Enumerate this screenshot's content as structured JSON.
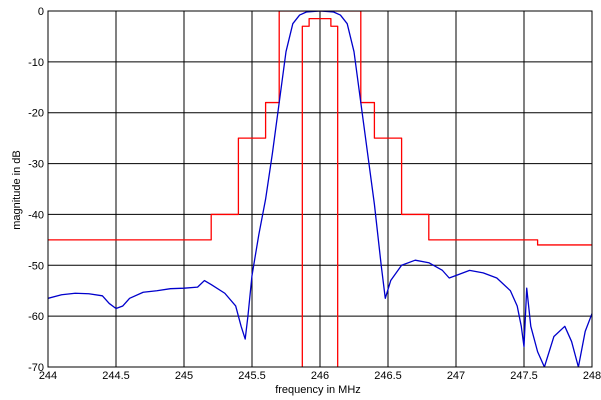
{
  "chart_data": {
    "type": "line",
    "xlabel": "frequency in MHz",
    "ylabel": "magnitude in dB",
    "xlim": [
      244,
      248
    ],
    "ylim": [
      -70,
      0
    ],
    "x_ticks": [
      "244",
      "244.5",
      "245",
      "245.5",
      "246",
      "246.5",
      "247",
      "247.5",
      "248"
    ],
    "y_ticks": [
      "0",
      "-10",
      "-20",
      "-30",
      "-40",
      "-50",
      "-60",
      "-70"
    ],
    "grid": true,
    "colors": {
      "mask": "#ff0000",
      "spectrum": "#0000cc"
    },
    "series": [
      {
        "key": "mask_upper",
        "color_key": "mask",
        "style": "step",
        "points": [
          [
            244,
            -45
          ],
          [
            245.2,
            -45
          ],
          [
            245.2,
            -40
          ],
          [
            245.4,
            -40
          ],
          [
            245.4,
            -25
          ],
          [
            245.6,
            -25
          ],
          [
            245.6,
            -18
          ],
          [
            245.7,
            -18
          ],
          [
            245.7,
            0
          ],
          [
            246.3,
            0
          ],
          [
            246.3,
            -18
          ],
          [
            246.4,
            -18
          ],
          [
            246.4,
            -25
          ],
          [
            246.6,
            -25
          ],
          [
            246.6,
            -40
          ],
          [
            246.8,
            -40
          ],
          [
            246.8,
            -45
          ],
          [
            247.6,
            -45
          ],
          [
            247.6,
            -46
          ],
          [
            248,
            -46
          ]
        ]
      },
      {
        "key": "mask_lower",
        "color_key": "mask",
        "style": "step",
        "points": [
          [
            245.87,
            -70
          ],
          [
            245.87,
            -3
          ],
          [
            245.92,
            -3
          ],
          [
            245.92,
            -1.5
          ],
          [
            246.08,
            -1.5
          ],
          [
            246.08,
            -3
          ],
          [
            246.13,
            -3
          ],
          [
            246.13,
            -70
          ]
        ]
      },
      {
        "key": "spectrum",
        "color_key": "spectrum",
        "style": "line",
        "points": [
          [
            244,
            -56.5
          ],
          [
            244.1,
            -55.8
          ],
          [
            244.2,
            -55.5
          ],
          [
            244.3,
            -55.6
          ],
          [
            244.4,
            -56
          ],
          [
            244.45,
            -57.5
          ],
          [
            244.5,
            -58.5
          ],
          [
            244.55,
            -58
          ],
          [
            244.6,
            -56.5
          ],
          [
            244.7,
            -55.3
          ],
          [
            244.8,
            -55
          ],
          [
            244.9,
            -54.6
          ],
          [
            245,
            -54.5
          ],
          [
            245.1,
            -54.3
          ],
          [
            245.15,
            -53
          ],
          [
            245.2,
            -53.8
          ],
          [
            245.3,
            -55.5
          ],
          [
            245.38,
            -58
          ],
          [
            245.42,
            -62
          ],
          [
            245.45,
            -64.5
          ],
          [
            245.47,
            -60
          ],
          [
            245.5,
            -52
          ],
          [
            245.55,
            -44
          ],
          [
            245.6,
            -37
          ],
          [
            245.65,
            -28
          ],
          [
            245.7,
            -18
          ],
          [
            245.75,
            -8
          ],
          [
            245.8,
            -2.5
          ],
          [
            245.85,
            -0.8
          ],
          [
            245.9,
            -0.2
          ],
          [
            246,
            0
          ],
          [
            246.1,
            -0.2
          ],
          [
            246.15,
            -0.8
          ],
          [
            246.2,
            -2.5
          ],
          [
            246.25,
            -8
          ],
          [
            246.3,
            -18
          ],
          [
            246.35,
            -28
          ],
          [
            246.4,
            -38
          ],
          [
            246.45,
            -50
          ],
          [
            246.48,
            -56.5
          ],
          [
            246.52,
            -53
          ],
          [
            246.6,
            -50
          ],
          [
            246.7,
            -49
          ],
          [
            246.8,
            -49.5
          ],
          [
            246.9,
            -51
          ],
          [
            246.95,
            -52.5
          ],
          [
            247,
            -52
          ],
          [
            247.1,
            -51
          ],
          [
            247.2,
            -51.5
          ],
          [
            247.3,
            -52.5
          ],
          [
            247.4,
            -55
          ],
          [
            247.45,
            -58
          ],
          [
            247.48,
            -62
          ],
          [
            247.5,
            -66
          ],
          [
            247.52,
            -54.5
          ],
          [
            247.55,
            -62
          ],
          [
            247.6,
            -67
          ],
          [
            247.65,
            -70
          ],
          [
            247.72,
            -64
          ],
          [
            247.8,
            -62
          ],
          [
            247.85,
            -65
          ],
          [
            247.9,
            -70
          ],
          [
            247.95,
            -63
          ],
          [
            248,
            -59.5
          ]
        ]
      }
    ]
  }
}
